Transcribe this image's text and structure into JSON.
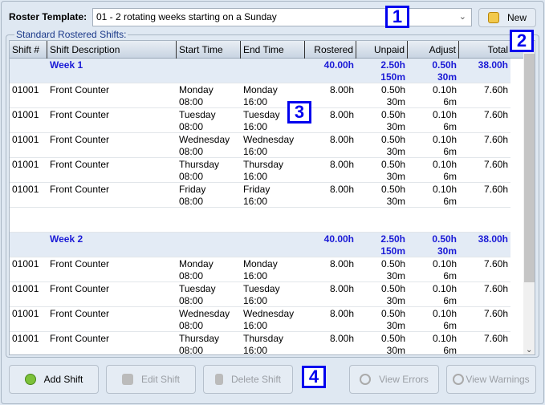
{
  "roster_label": "Roster Template:",
  "roster_value": "01 - 2 rotating weeks starting on a Sunday",
  "new_label": "New",
  "group_label": "Standard Rostered Shifts:",
  "columns": [
    "Shift #",
    "Shift Description",
    "Start Time",
    "End Time",
    "Rostered",
    "Unpaid",
    "Adjust",
    "Total"
  ],
  "rows": [
    {
      "type": "week",
      "desc": "Week 1",
      "rostered": "40.00h",
      "unpaid": "2.50h",
      "unpaid2": "150m",
      "adjust": "0.50h",
      "adjust2": "30m",
      "total": "38.00h"
    },
    {
      "type": "shift",
      "id": "01001",
      "desc": "Front Counter",
      "start": "Monday",
      "start2": "08:00",
      "end": "Monday",
      "end2": "16:00",
      "rostered": "8.00h",
      "unpaid": "0.50h",
      "unpaid2": "30m",
      "adjust": "0.10h",
      "adjust2": "6m",
      "total": "7.60h"
    },
    {
      "type": "shift",
      "id": "01001",
      "desc": "Front Counter",
      "start": "Tuesday",
      "start2": "08:00",
      "end": "Tuesday",
      "end2": "16:00",
      "rostered": "8.00h",
      "unpaid": "0.50h",
      "unpaid2": "30m",
      "adjust": "0.10h",
      "adjust2": "6m",
      "total": "7.60h"
    },
    {
      "type": "shift",
      "id": "01001",
      "desc": "Front Counter",
      "start": "Wednesday",
      "start2": "08:00",
      "end": "Wednesday",
      "end2": "16:00",
      "rostered": "8.00h",
      "unpaid": "0.50h",
      "unpaid2": "30m",
      "adjust": "0.10h",
      "adjust2": "6m",
      "total": "7.60h"
    },
    {
      "type": "shift",
      "id": "01001",
      "desc": "Front Counter",
      "start": "Thursday",
      "start2": "08:00",
      "end": "Thursday",
      "end2": "16:00",
      "rostered": "8.00h",
      "unpaid": "0.50h",
      "unpaid2": "30m",
      "adjust": "0.10h",
      "adjust2": "6m",
      "total": "7.60h"
    },
    {
      "type": "shift",
      "id": "01001",
      "desc": "Front Counter",
      "start": "Friday",
      "start2": "08:00",
      "end": "Friday",
      "end2": "16:00",
      "rostered": "8.00h",
      "unpaid": "0.50h",
      "unpaid2": "30m",
      "adjust": "0.10h",
      "adjust2": "6m",
      "total": "7.60h"
    },
    {
      "type": "blank"
    },
    {
      "type": "week",
      "desc": "Week 2",
      "rostered": "40.00h",
      "unpaid": "2.50h",
      "unpaid2": "150m",
      "adjust": "0.50h",
      "adjust2": "30m",
      "total": "38.00h"
    },
    {
      "type": "shift",
      "id": "01001",
      "desc": "Front Counter",
      "start": "Monday",
      "start2": "08:00",
      "end": "Monday",
      "end2": "16:00",
      "rostered": "8.00h",
      "unpaid": "0.50h",
      "unpaid2": "30m",
      "adjust": "0.10h",
      "adjust2": "6m",
      "total": "7.60h"
    },
    {
      "type": "shift",
      "id": "01001",
      "desc": "Front Counter",
      "start": "Tuesday",
      "start2": "08:00",
      "end": "Tuesday",
      "end2": "16:00",
      "rostered": "8.00h",
      "unpaid": "0.50h",
      "unpaid2": "30m",
      "adjust": "0.10h",
      "adjust2": "6m",
      "total": "7.60h"
    },
    {
      "type": "shift",
      "id": "01001",
      "desc": "Front Counter",
      "start": "Wednesday",
      "start2": "08:00",
      "end": "Wednesday",
      "end2": "16:00",
      "rostered": "8.00h",
      "unpaid": "0.50h",
      "unpaid2": "30m",
      "adjust": "0.10h",
      "adjust2": "6m",
      "total": "7.60h"
    },
    {
      "type": "shift",
      "id": "01001",
      "desc": "Front Counter",
      "start": "Thursday",
      "start2": "08:00",
      "end": "Thursday",
      "end2": "16:00",
      "rostered": "8.00h",
      "unpaid": "0.50h",
      "unpaid2": "30m",
      "adjust": "0.10h",
      "adjust2": "6m",
      "total": "7.60h"
    }
  ],
  "buttons": {
    "add": "Add Shift",
    "edit": "Edit Shift",
    "delete": "Delete Shift",
    "errors": "View Errors",
    "warnings": "View Warnings"
  },
  "badges": [
    "1",
    "2",
    "3",
    "4"
  ],
  "colors": {
    "week_text": "#1a1ad6",
    "badge": "#0000ee"
  }
}
